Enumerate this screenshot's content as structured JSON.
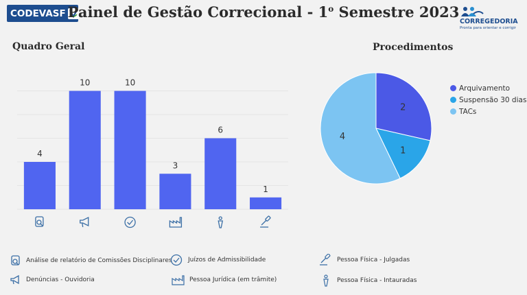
{
  "header": {
    "logo_left": "CODEVASF",
    "title_main": "Painel de Gestão Correcional - 1",
    "title_sup": "o",
    "title_tail": " Semestre 2023",
    "logo_right_name": "CORREGEDORIA",
    "logo_right_tagline": "Pronta para orientar e corrigir"
  },
  "colors": {
    "bar": "#5065f0",
    "arquivamento": "#4b59e6",
    "suspensao": "#2aa5e8",
    "tacs": "#7cc4f2"
  },
  "icons": [
    "analysis-icon",
    "megaphone-icon",
    "check-circle-icon",
    "factory-icon",
    "person-icon",
    "gavel-icon"
  ],
  "chart_data": [
    {
      "type": "bar",
      "title": "Quadro Geral",
      "categories": [
        "Análise de relatório de Comissões Disciplinares",
        "Denúncias - Ouvidoria",
        "Juízos de Admissibilidade",
        "Pessoa Jurídica (em trâmite)",
        "Pessoa Física - Intauradas",
        "Pessoa Física - Julgadas"
      ],
      "values": [
        4,
        10,
        10,
        3,
        6,
        1
      ],
      "ylim": [
        0,
        12
      ],
      "grid": true
    },
    {
      "type": "pie",
      "title": "Procedimentos",
      "labels": [
        "Arquivamento",
        "Suspensão 30 dias",
        "TACs"
      ],
      "values": [
        2,
        1,
        4
      ],
      "legend": "right"
    }
  ],
  "key": [
    {
      "icon": "analysis-icon",
      "label": "Análise de relatório de Comissões Disciplinares"
    },
    {
      "icon": "megaphone-icon",
      "label": "Denúncias - Ouvidoria"
    },
    {
      "icon": "check-circle-icon",
      "label": "Juízos de Admissibilidade"
    },
    {
      "icon": "factory-icon",
      "label": "Pessoa Jurídica (em trâmite)"
    },
    {
      "icon": "gavel-icon",
      "label": "Pessoa Física - Julgadas"
    },
    {
      "icon": "person-icon",
      "label": "Pessoa Física - Intauradas"
    }
  ]
}
